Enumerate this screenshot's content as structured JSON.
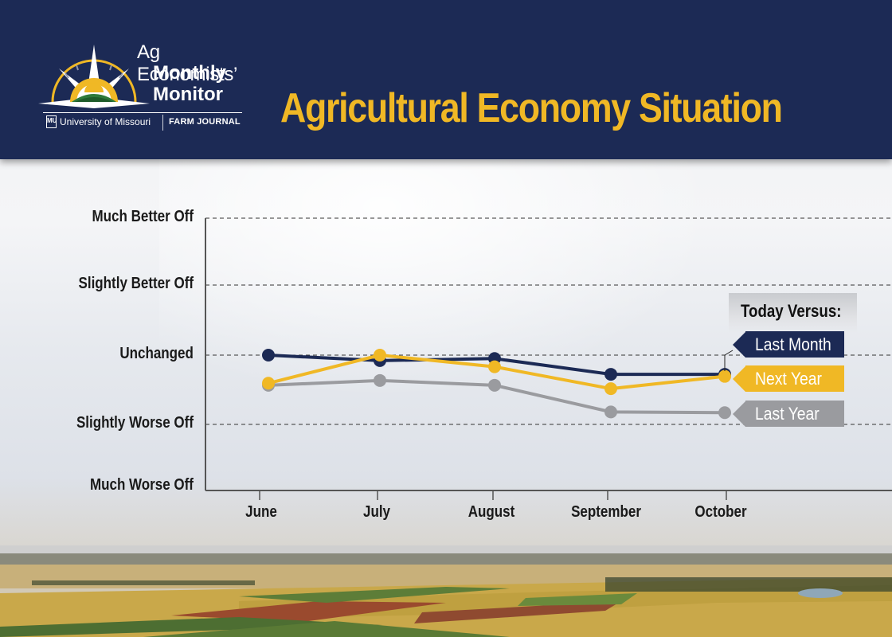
{
  "header": {
    "logo": {
      "line1": "Ag Economists’",
      "line2": "Monthly",
      "line3": "Monitor",
      "partner1": "University of Missouri",
      "partner1_badge": "MU",
      "partner2": "FARM JOURNAL"
    },
    "title": "Agricultural Economy Situation"
  },
  "colors": {
    "navy": "#1c2a55",
    "gold": "#f0b825",
    "gray": "#9a9b9f"
  },
  "legend": {
    "title": "Today Versus:",
    "items": [
      {
        "label": "Last Month",
        "color": "#1c2a55"
      },
      {
        "label": "Next Year",
        "color": "#f0b825"
      },
      {
        "label": "Last Year",
        "color": "#9a9b9f"
      }
    ]
  },
  "chart_data": {
    "type": "line",
    "title": "Agricultural Economy Situation",
    "xlabel": "",
    "ylabel": "",
    "categories": [
      "June",
      "July",
      "August",
      "September",
      "October"
    ],
    "y_tick_labels": [
      "Much Worse Off",
      "Slightly Worse Off",
      "Unchanged",
      "Slightly Better Off",
      "Much Better Off"
    ],
    "y_tick_values": [
      -2,
      -1,
      0,
      1,
      2
    ],
    "ylim": [
      -2,
      2
    ],
    "grid": "horizontal dashed",
    "legend_position": "right, labels at line ends",
    "series": [
      {
        "name": "Last Month",
        "color": "#1c2a55",
        "values": [
          0.0,
          -0.08,
          -0.05,
          -0.28,
          -0.28
        ]
      },
      {
        "name": "Next Year",
        "color": "#f0b825",
        "values": [
          -0.41,
          0.0,
          -0.17,
          -0.49,
          -0.31
        ]
      },
      {
        "name": "Last Year",
        "color": "#9a9b9f",
        "values": [
          -0.44,
          -0.37,
          -0.44,
          -0.83,
          -0.84
        ]
      }
    ]
  }
}
